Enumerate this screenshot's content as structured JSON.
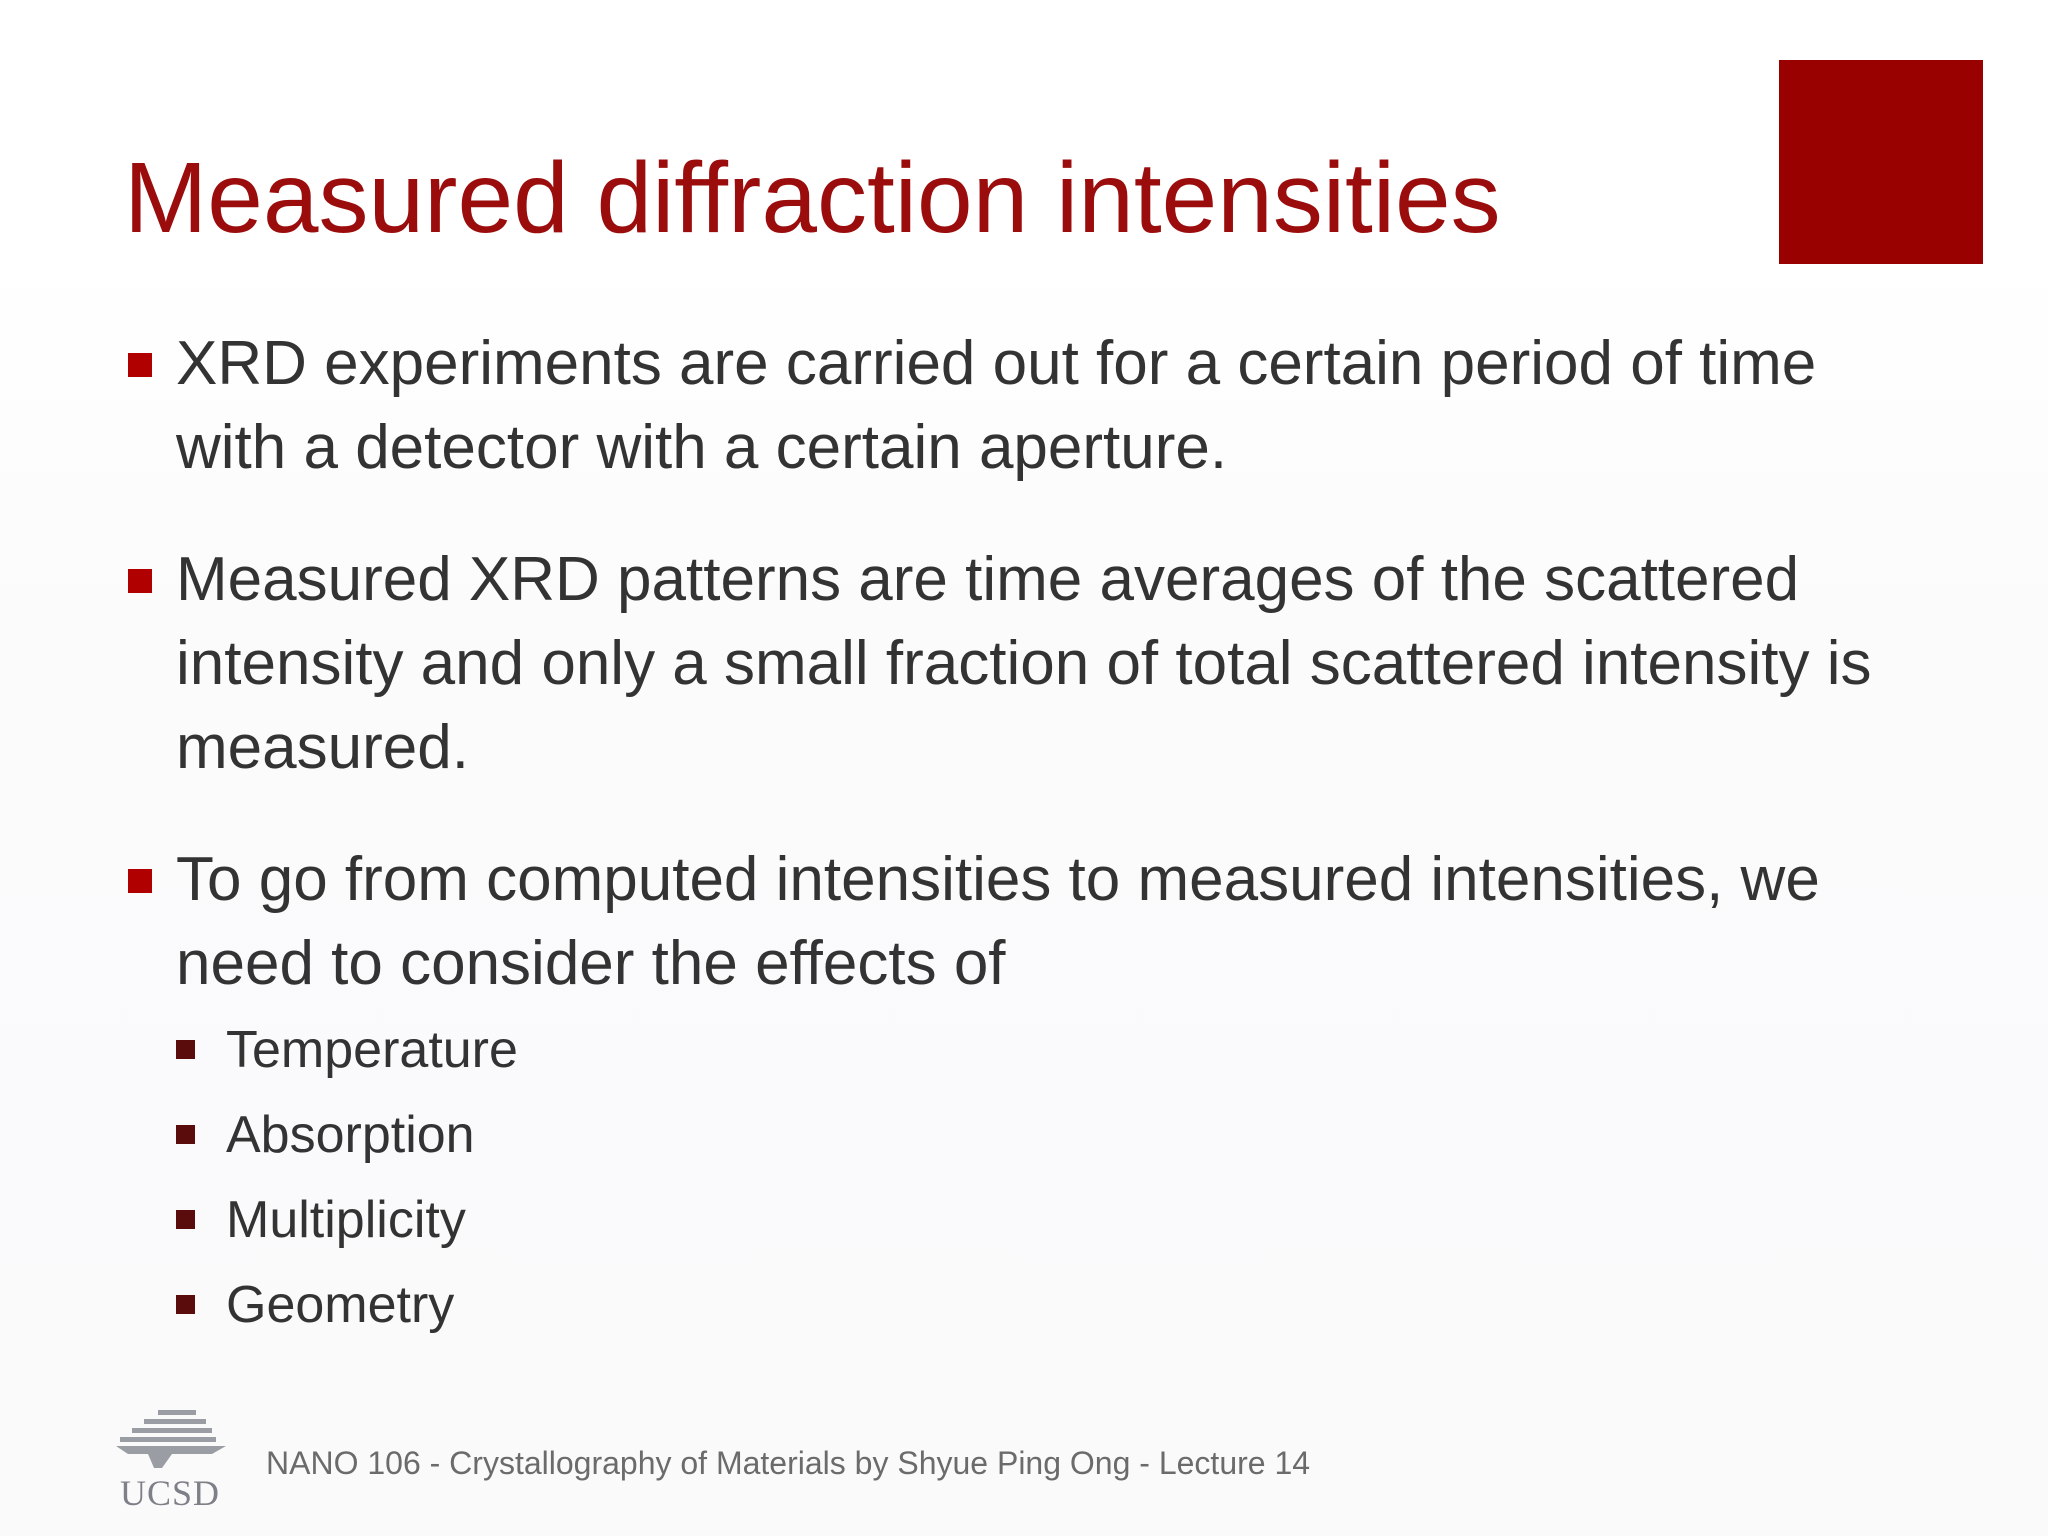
{
  "slide": {
    "title": "Measured diffraction intensities",
    "accent_color": "#990000",
    "bullets": [
      {
        "text": "XRD experiments are carried out for a certain period of time with a detector with a certain aperture."
      },
      {
        "text": "Measured XRD patterns are time averages of the scattered intensity and only a small fraction of total scattered intensity is measured."
      },
      {
        "text": "To go from computed intensities to measured intensities, we need to consider the effects of"
      }
    ],
    "subbullets": [
      {
        "text": "Temperature"
      },
      {
        "text": "Absorption"
      },
      {
        "text": "Multiplicity"
      },
      {
        "text": "Geometry"
      }
    ],
    "logo_text": "UCSD",
    "footer": "NANO 106 - Crystallography of Materials by Shyue Ping Ong - Lecture 14"
  }
}
